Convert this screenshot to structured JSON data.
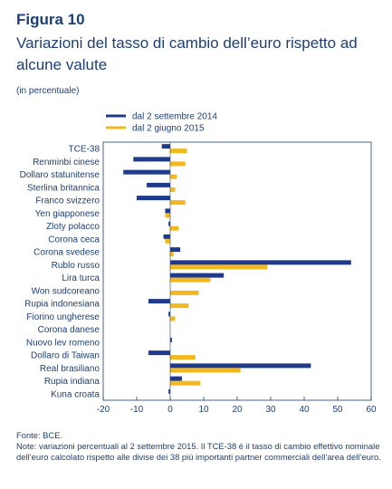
{
  "figure": {
    "number": "Figura 10",
    "title": "Variazioni del tasso di cambio dell’euro rispetto ad alcune valute",
    "unit": "(in percentuale)"
  },
  "notes": {
    "source": "Fonte: BCE.",
    "note": "Note: variazioni percentuali al 2 settembre 2015. Il TCE-38 è il tasso di cambio effettivo nominale dell’euro calcolato rispetto alle divise dei 38 più importanti partner commerciali dell’area dell’euro."
  },
  "colors": {
    "series1": "#1f3a8a",
    "series2": "#f2b81d",
    "axis": "#1d3f73",
    "grid": "#b5b5b5"
  },
  "chart_data": {
    "type": "bar",
    "orientation": "horizontal",
    "categories": [
      "TCE-38",
      "Renminbi cinese",
      "Dollaro statunitense",
      "Sterlina britannica",
      "Franco svizzero",
      "Yen giapponese",
      "Zloty polacco",
      "Corona ceca",
      "Corona svedese",
      "Rublo russo",
      "Lira turca",
      "Won sudcoreano",
      "Rupia indonesiana",
      "Fiorino ungherese",
      "Corona danese",
      "Nuovo lev romeno",
      "Dollaro di Taiwan",
      "Real brasiliano",
      "Rupia indiana",
      "Kuna croata"
    ],
    "series": [
      {
        "name": "dal 2 settembre 2014",
        "values": [
          -2.5,
          -11,
          -14,
          -7,
          -10,
          -1.5,
          -0.5,
          -2,
          3,
          54,
          16,
          0,
          -6.5,
          -0.5,
          0,
          0.5,
          -6.5,
          42,
          3.5,
          -0.5
        ]
      },
      {
        "name": "dal 2 giugno 2015",
        "values": [
          5,
          4.5,
          2,
          1.5,
          4.5,
          -1.5,
          2.5,
          -1.5,
          1,
          29,
          12,
          8.5,
          5.5,
          1.5,
          0,
          0,
          7.5,
          21,
          9,
          0
        ]
      }
    ],
    "xlim": [
      -20,
      60
    ],
    "xticks": [
      "-20",
      "-10",
      "0",
      "10",
      "20",
      "30",
      "40",
      "50",
      "60"
    ],
    "grid": false,
    "legend_position": "top"
  }
}
